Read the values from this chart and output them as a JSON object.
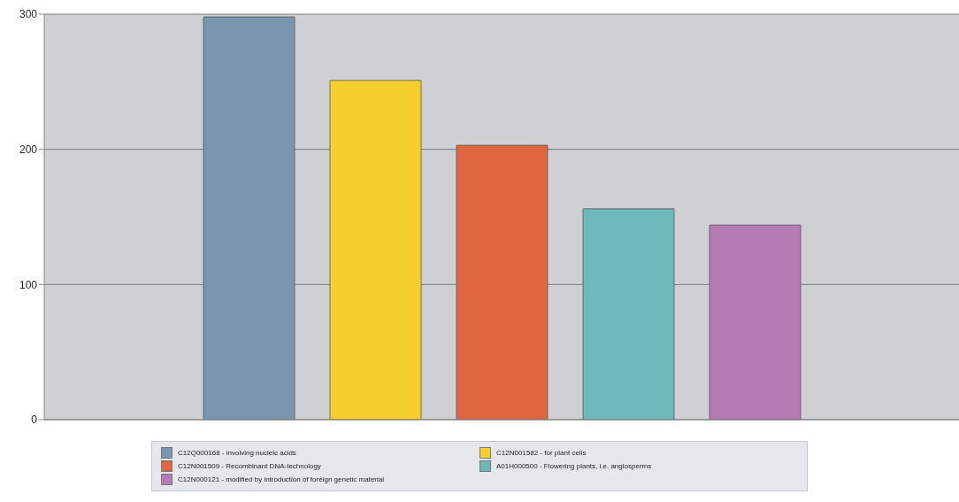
{
  "chart_data": {
    "type": "bar",
    "categories": [
      null
    ],
    "series": [
      {
        "name": "C12Q000168  -  involving nucleic acids",
        "color": "#7896b0",
        "values": [
          298
        ]
      },
      {
        "name": "C12N001582  -  for plant cells",
        "color": "#f7cf2c",
        "values": [
          251
        ]
      },
      {
        "name": "C12N001509  -  Recombinant DNA-technology",
        "color": "#e06641",
        "values": [
          203
        ]
      },
      {
        "name": "A01H000500  -  Flowering plants, i.e. angiosperms",
        "color": "#6db9b9",
        "values": [
          156
        ]
      },
      {
        "name": "C12N000121  -  modified by introduction of foreign genetic material",
        "color": "#b57bb5",
        "values": [
          144
        ]
      }
    ],
    "ylim": [
      0,
      300
    ],
    "yticks": [
      0,
      100,
      200,
      300
    ],
    "grid": "y",
    "legend": "bottom"
  }
}
